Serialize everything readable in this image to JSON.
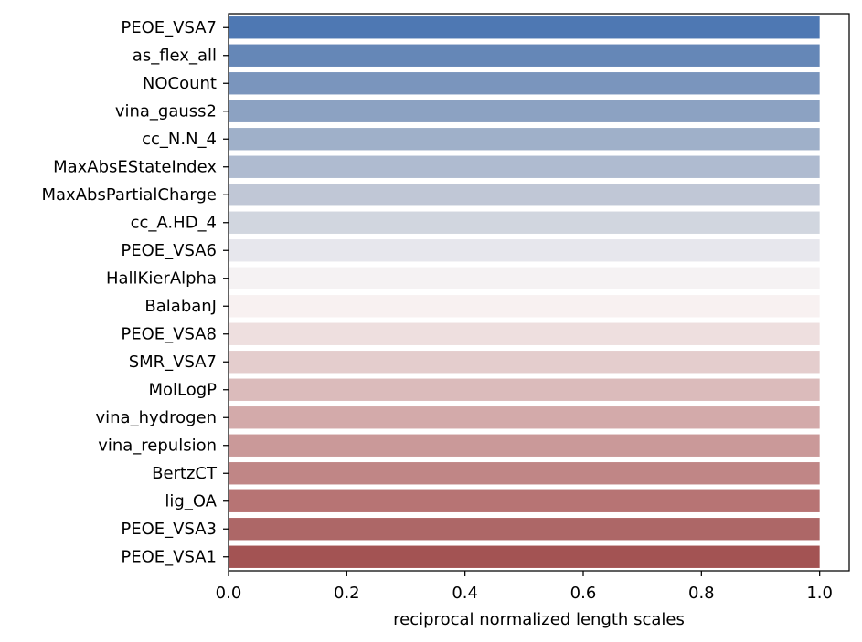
{
  "chart_data": {
    "type": "bar",
    "orientation": "horizontal",
    "categories": [
      "PEOE_VSA7",
      "as_flex_all",
      "NOCount",
      "vina_gauss2",
      "cc_N.N_4",
      "MaxAbsEStateIndex",
      "MaxAbsPartialCharge",
      "cc_A.HD_4",
      "PEOE_VSA6",
      "HallKierAlpha",
      "BalabanJ",
      "PEOE_VSA8",
      "SMR_VSA7",
      "MolLogP",
      "vina_hydrogen",
      "vina_repulsion",
      "BertzCT",
      "lig_OA",
      "PEOE_VSA3",
      "PEOE_VSA1"
    ],
    "values": [
      1.0,
      1.0,
      1.0,
      1.0,
      1.0,
      1.0,
      1.0,
      1.0,
      1.0,
      1.0,
      1.0,
      1.0,
      1.0,
      1.0,
      1.0,
      1.0,
      1.0,
      1.0,
      1.0,
      1.0
    ],
    "colors": [
      "#4e78b3",
      "#6587b7",
      "#7a95bd",
      "#8ca2c2",
      "#9fb0c9",
      "#afbbd0",
      "#c0c7d6",
      "#d1d6df",
      "#e7e7ed",
      "#f5f2f3",
      "#f8f1f1",
      "#eedfdf",
      "#e4cdcd",
      "#dbbbbb",
      "#d3aaaa",
      "#ca9999",
      "#c08686",
      "#b77474",
      "#ad6767",
      "#a35353"
    ],
    "title": "",
    "xlabel": "reciprocal normalized length scales",
    "ylabel": "",
    "xlim": [
      0,
      1.05
    ],
    "xticks": [
      0.0,
      0.2,
      0.4,
      0.6,
      0.8,
      1.0
    ],
    "xtick_labels": [
      "0.0",
      "0.2",
      "0.4",
      "0.6",
      "0.8",
      "1.0"
    ],
    "grid": false
  }
}
